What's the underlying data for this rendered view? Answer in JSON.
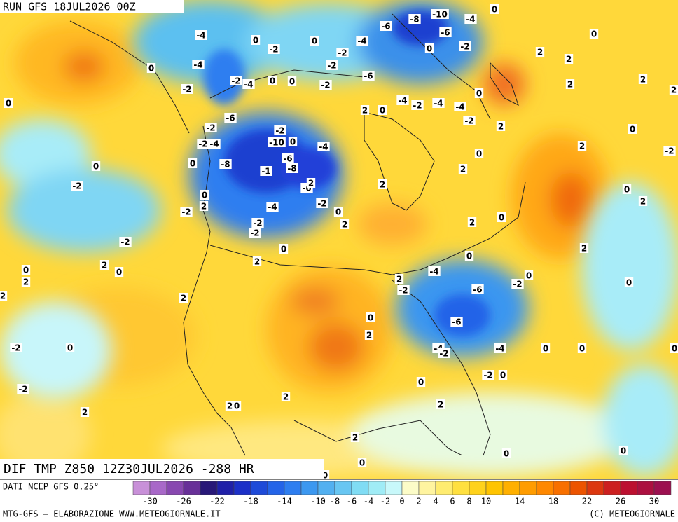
{
  "header": {
    "run": "RUN GFS 18JUL2026 00Z"
  },
  "map": {
    "field_title": "DIF TMP Z850 12Z30JUL2026 -288 HR",
    "contour_labels": [
      -4,
      0,
      -2,
      0,
      0,
      -4,
      -2,
      0,
      -2,
      -4,
      0,
      0,
      -2,
      -2,
      -2,
      -4,
      -6,
      -8,
      -10,
      -6,
      -4,
      0,
      0,
      -2,
      -6,
      2,
      0,
      -4,
      -2,
      -4,
      -4,
      -2,
      0,
      2,
      2,
      2,
      0,
      2,
      2,
      2,
      0,
      2,
      -2,
      0,
      2,
      -6,
      -2,
      -2,
      -4,
      0,
      -10,
      -2,
      0,
      -4,
      -6,
      -8,
      -1,
      -8,
      -6,
      2,
      2,
      -2,
      0,
      2,
      -4,
      0,
      2,
      -2,
      -2,
      -2,
      0,
      2,
      0,
      -2,
      -2,
      2,
      0,
      0,
      2,
      2,
      2,
      2,
      -2,
      -4,
      0,
      2,
      0,
      0,
      -2,
      -6,
      -6,
      0,
      2,
      -4,
      -2,
      -4,
      0,
      0,
      0,
      0,
      2,
      0,
      2,
      0,
      -2,
      0,
      2,
      2,
      2,
      0,
      2,
      0,
      -2,
      -2,
      2,
      0,
      0,
      0,
      0
    ]
  },
  "legend": {
    "source": "DATI NCEP GFS 0.25°",
    "colors": [
      "#c890d8",
      "#a868c8",
      "#8848b0",
      "#683098",
      "#281878",
      "#2020a8",
      "#1c30c8",
      "#1e4ad8",
      "#2464e8",
      "#2e7ef0",
      "#3c98f0",
      "#52b0f0",
      "#68c6f2",
      "#80dcf4",
      "#a0ecf6",
      "#c8f8fa",
      "#fcfcc8",
      "#fff4a0",
      "#ffec70",
      "#ffe040",
      "#ffd21c",
      "#ffc400",
      "#ffb000",
      "#ff9c00",
      "#ff8800",
      "#f87000",
      "#ec5400",
      "#dc3810",
      "#cc2020",
      "#bc1030",
      "#ac1040",
      "#9c1050"
    ],
    "labels": [
      -30,
      -26,
      -22,
      -18,
      -14,
      -10,
      -8,
      -6,
      -4,
      -2,
      0,
      2,
      4,
      6,
      8,
      10,
      14,
      18,
      22,
      26,
      30
    ]
  },
  "footer": {
    "left": "MTG-GFS — ELABORAZIONE WWW.METEOGIORNALE.IT",
    "right": "(C) METEOGIORNALE"
  }
}
